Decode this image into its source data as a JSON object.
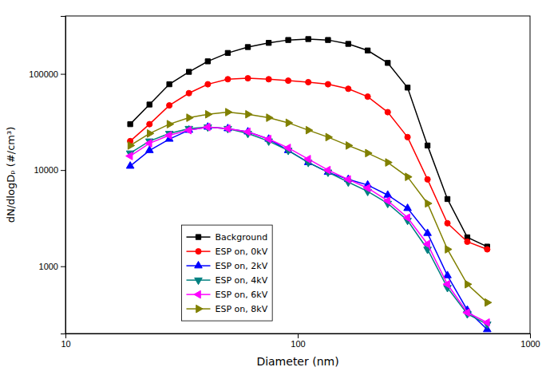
{
  "chart_data": {
    "type": "line",
    "xlabel": "Diameter (nm)",
    "ylabel": "dN/dlogDₚ (#/cm³)",
    "log": true,
    "grid": false,
    "legend": "lower-left",
    "xlim": [
      10,
      1000
    ],
    "ylim": [
      200,
      400000
    ],
    "xticks": [
      10,
      100,
      1000
    ],
    "yticks": [
      1000,
      10000,
      100000
    ],
    "x": [
      19,
      23,
      28,
      34,
      41,
      50,
      61,
      75,
      91,
      111,
      135,
      165,
      200,
      244,
      297,
      362,
      441,
      537,
      654
    ],
    "series": [
      {
        "name": "Background",
        "color": "#000000",
        "marker": "square",
        "values": [
          30000,
          48000,
          78000,
          105000,
          135000,
          165000,
          190000,
          210000,
          225000,
          230000,
          225000,
          205000,
          175000,
          130000,
          72000,
          18000,
          5000,
          2000,
          1600
        ]
      },
      {
        "name": "ESP on, 0kV",
        "color": "#ff0000",
        "marker": "circle",
        "values": [
          20000,
          30000,
          47000,
          63000,
          78000,
          88000,
          90000,
          88000,
          85000,
          82000,
          78000,
          70000,
          58000,
          40000,
          22000,
          8000,
          2800,
          1800,
          1500
        ]
      },
      {
        "name": "ESP on, 2kV",
        "color": "#0000ff",
        "marker": "triangle-up",
        "values": [
          11000,
          16000,
          21000,
          26000,
          28000,
          27000,
          25000,
          21000,
          16000,
          12000,
          9500,
          8000,
          7000,
          5500,
          4000,
          2200,
          800,
          350,
          220
        ]
      },
      {
        "name": "ESP on, 4kV",
        "color": "#008080",
        "marker": "triangle-down",
        "values": [
          15000,
          20000,
          24000,
          27000,
          28000,
          27000,
          24000,
          20000,
          16000,
          12000,
          9500,
          7500,
          6000,
          4500,
          3000,
          1500,
          600,
          320,
          250
        ]
      },
      {
        "name": "ESP on, 6kV",
        "color": "#ff00ff",
        "marker": "triangle-left",
        "values": [
          14000,
          19000,
          23000,
          26000,
          28000,
          27000,
          25000,
          21000,
          17000,
          13000,
          10000,
          8000,
          6500,
          4800,
          3200,
          1700,
          650,
          330,
          260
        ]
      },
      {
        "name": "ESP on, 8kV",
        "color": "#808000",
        "marker": "triangle-right",
        "values": [
          18000,
          24000,
          30000,
          35000,
          38000,
          40000,
          38000,
          35000,
          31000,
          26000,
          22000,
          18000,
          15000,
          12000,
          8500,
          4500,
          1500,
          650,
          420
        ]
      }
    ]
  }
}
